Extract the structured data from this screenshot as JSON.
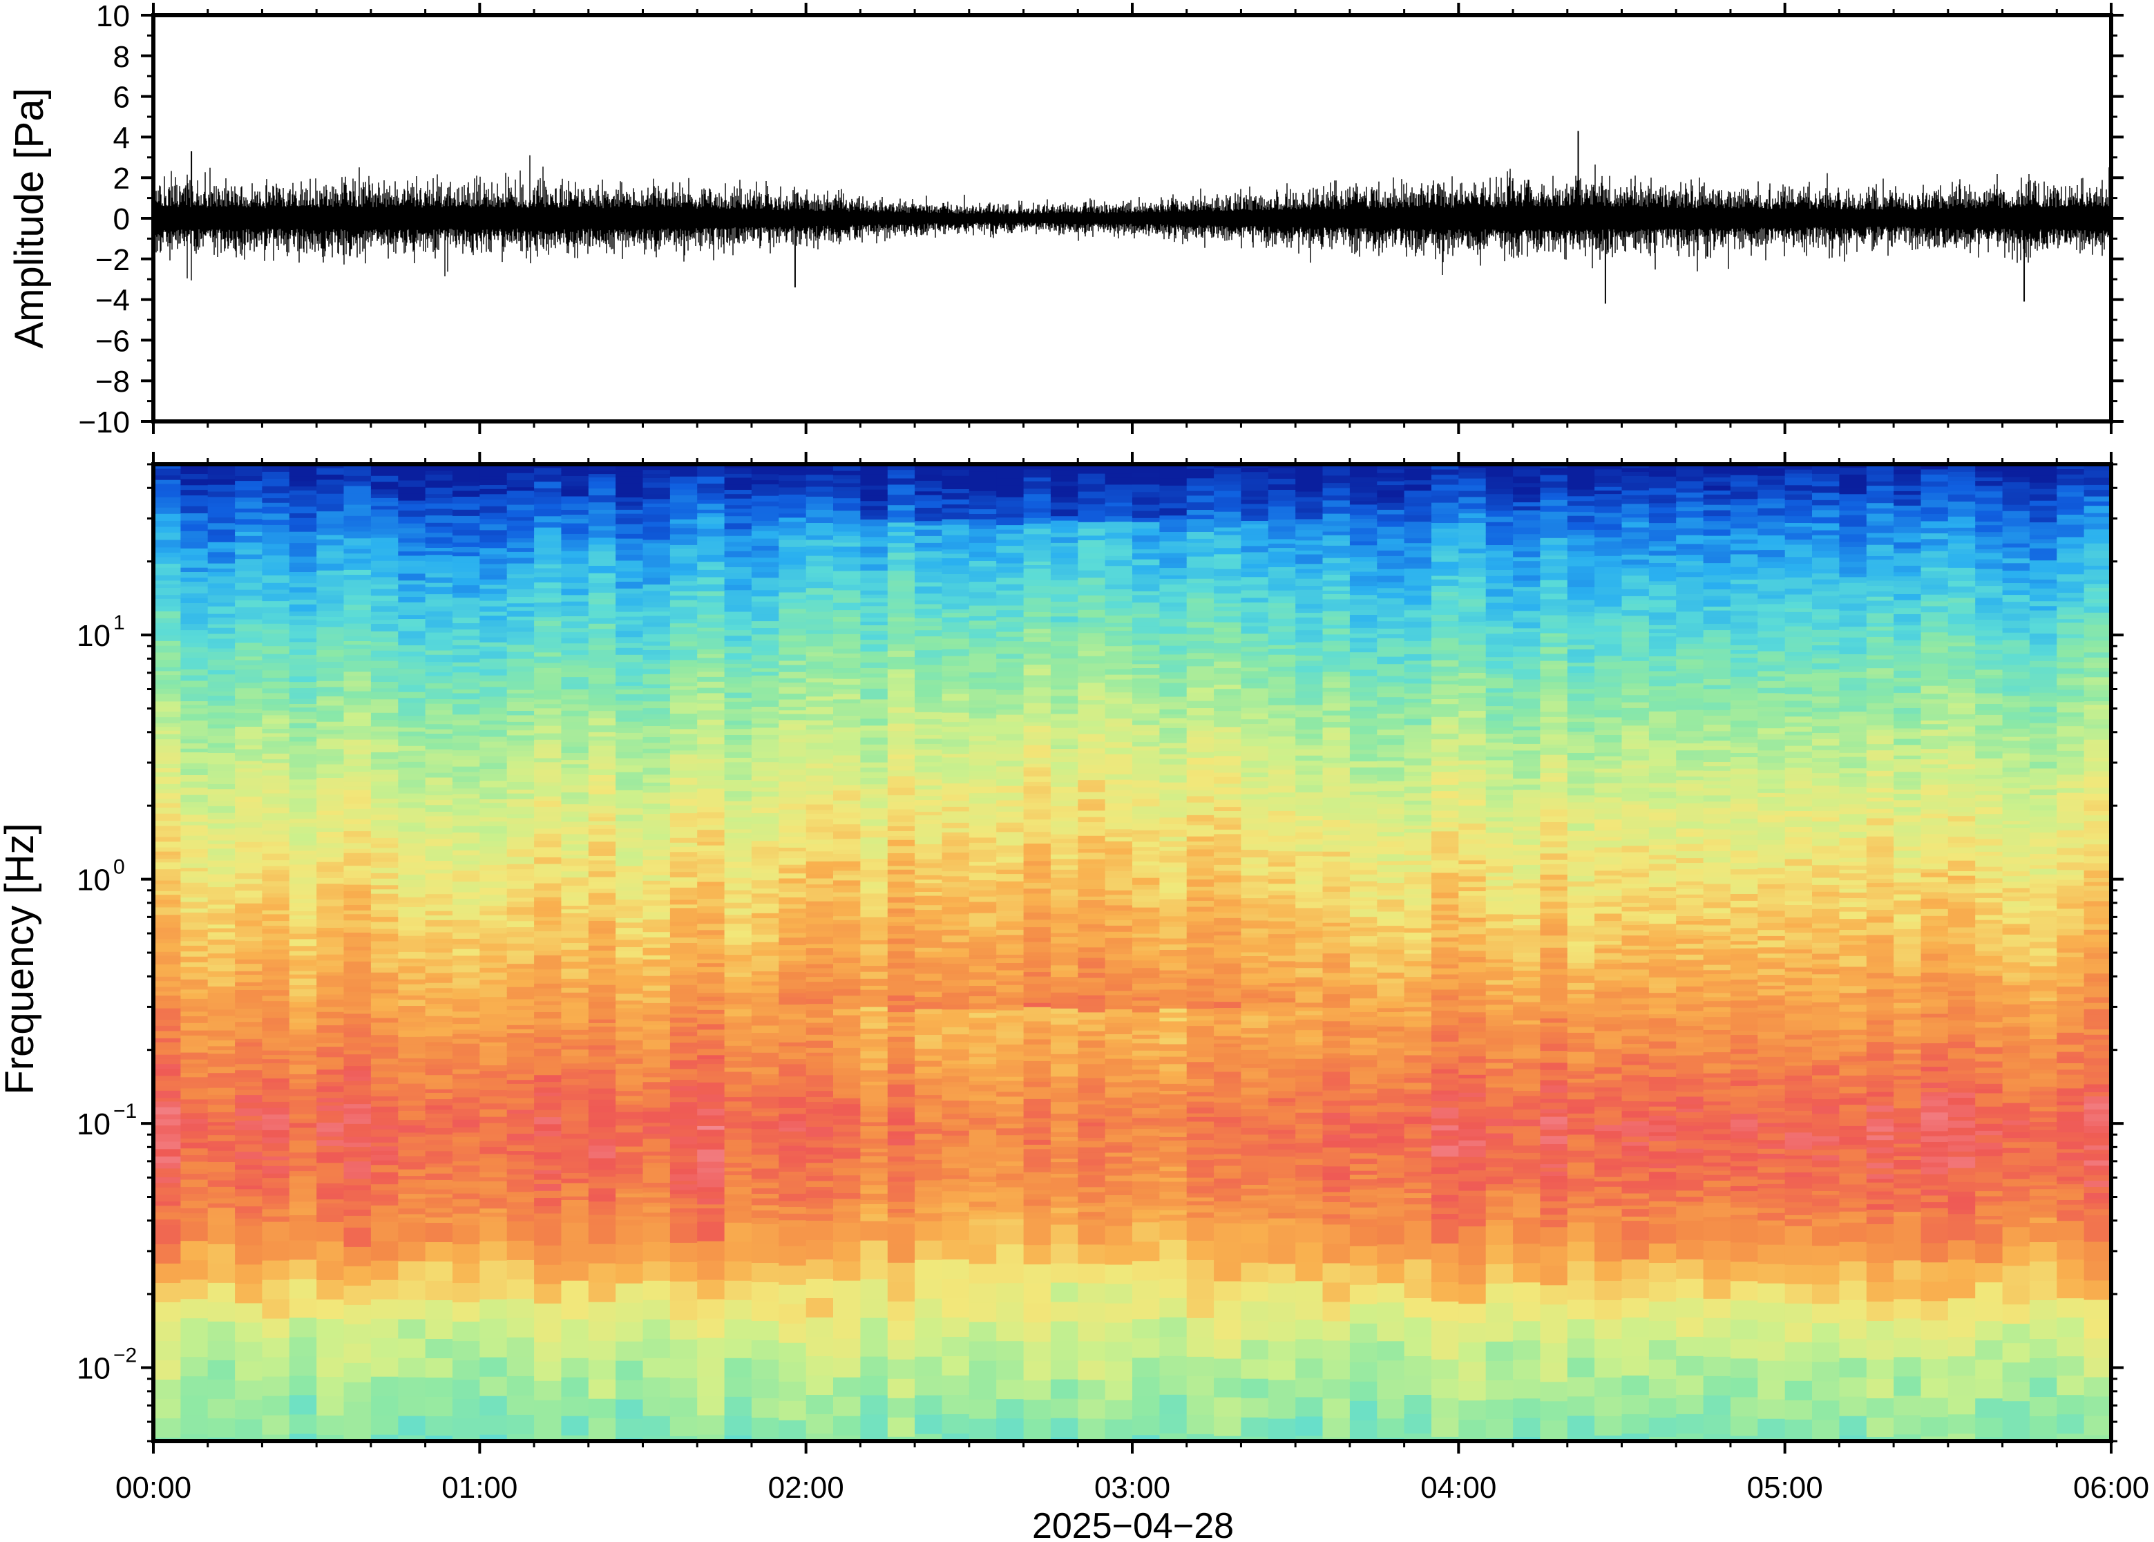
{
  "chart_data": [
    {
      "type": "line",
      "panel": "waveform",
      "ylabel": "Amplitude [Pa]",
      "ylim": [
        -10,
        10
      ],
      "yticks": [
        "10",
        "8",
        "6",
        "4",
        "2",
        "0",
        "−2",
        "−4",
        "−6",
        "−8",
        "−10"
      ],
      "xlim": [
        "00:00",
        "06:00"
      ],
      "grid": false,
      "series": [
        {
          "color": "#000000",
          "description_values": {
            "times": [
              "00:00",
              "00:20",
              "00:40",
              "01:00",
              "01:20",
              "01:40",
              "02:00",
              "02:20",
              "02:40",
              "03:00",
              "03:20",
              "03:40",
              "04:00",
              "04:20",
              "04:40",
              "05:00",
              "05:20",
              "05:40",
              "06:00"
            ],
            "envelope_pa": [
              2.2,
              2.0,
              2.2,
              2.0,
              2.0,
              1.9,
              1.5,
              1.0,
              0.8,
              1.0,
              1.5,
              1.8,
              2.1,
              2.2,
              2.0,
              1.8,
              1.6,
              2.0,
              2.2
            ],
            "peaks": [
              {
                "time": "04:22",
                "value": 4.3
              },
              {
                "time": "04:27",
                "value": -4.2
              },
              {
                "time": "01:58",
                "value": -3.4
              },
              {
                "time": "00:07",
                "value": 3.3
              },
              {
                "time": "05:44",
                "value": -4.1
              }
            ]
          }
        }
      ]
    },
    {
      "type": "heatmap",
      "panel": "spectrogram",
      "ylabel": "Frequency [Hz]",
      "yscale": "log",
      "ylim": [
        0.005,
        50
      ],
      "yticks": [
        {
          "base": "10",
          "exp": "1",
          "value": 10
        },
        {
          "base": "10",
          "exp": "0",
          "value": 1
        },
        {
          "base": "10",
          "exp": "−1",
          "value": 0.1
        },
        {
          "base": "10",
          "exp": "−2",
          "value": 0.01
        }
      ],
      "xlabel": "2025−04−28",
      "xticks": [
        "00:00",
        "01:00",
        "02:00",
        "03:00",
        "04:00",
        "05:00",
        "06:00"
      ],
      "xlim": [
        "00:00",
        "06:00"
      ],
      "colormap": [
        "#0a1f9e",
        "#1060e0",
        "#2ab0f0",
        "#5adbd8",
        "#8ce8a6",
        "#ccf08c",
        "#f2e77a",
        "#f9b14f",
        "#f48a48",
        "#ef5a55",
        "#f48f98"
      ],
      "level_profile": [
        {
          "freq_hz": 50,
          "level": 0.0
        },
        {
          "freq_hz": 30,
          "level": 0.14
        },
        {
          "freq_hz": 15,
          "level": 0.26
        },
        {
          "freq_hz": 8,
          "level": 0.36
        },
        {
          "freq_hz": 4,
          "level": 0.46
        },
        {
          "freq_hz": 2,
          "level": 0.55
        },
        {
          "freq_hz": 1,
          "level": 0.62
        },
        {
          "freq_hz": 0.5,
          "level": 0.69
        },
        {
          "freq_hz": 0.25,
          "level": 0.78
        },
        {
          "freq_hz": 0.1,
          "level": 0.9
        },
        {
          "freq_hz": 0.06,
          "level": 0.86
        },
        {
          "freq_hz": 0.035,
          "level": 0.78
        },
        {
          "freq_hz": 0.025,
          "level": 0.68
        },
        {
          "freq_hz": 0.015,
          "level": 0.52
        },
        {
          "freq_hz": 0.008,
          "level": 0.43
        },
        {
          "freq_hz": 0.005,
          "level": 0.38
        }
      ],
      "quiet_period": {
        "start": "02:15",
        "end": "03:15"
      },
      "grid": false
    }
  ]
}
